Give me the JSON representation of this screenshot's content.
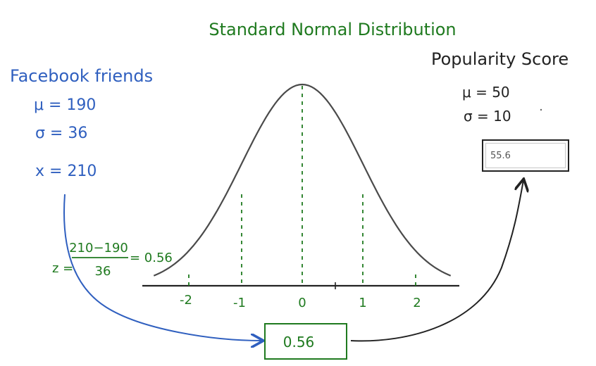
{
  "title": "Standard Normal Distribution",
  "left": {
    "heading": "Facebook friends",
    "mu": "μ = 190",
    "sigma": "σ = 36",
    "x": "x = 210"
  },
  "formula": {
    "z_label": "z =",
    "numerator": "210−190",
    "denominator": "36",
    "result": "= 0.56"
  },
  "right": {
    "heading": "Popularity Score",
    "mu": "μ = 50",
    "sigma": "σ = 10"
  },
  "axis_ticks": [
    "-2",
    "-1",
    "0",
    "1",
    "2"
  ],
  "z_box": "0.56",
  "answer": {
    "value": "55.6"
  },
  "colors": {
    "green": "#1f7a1f",
    "blue": "#2f5fbf",
    "ink": "#222222",
    "curve": "#4a4a4a"
  }
}
